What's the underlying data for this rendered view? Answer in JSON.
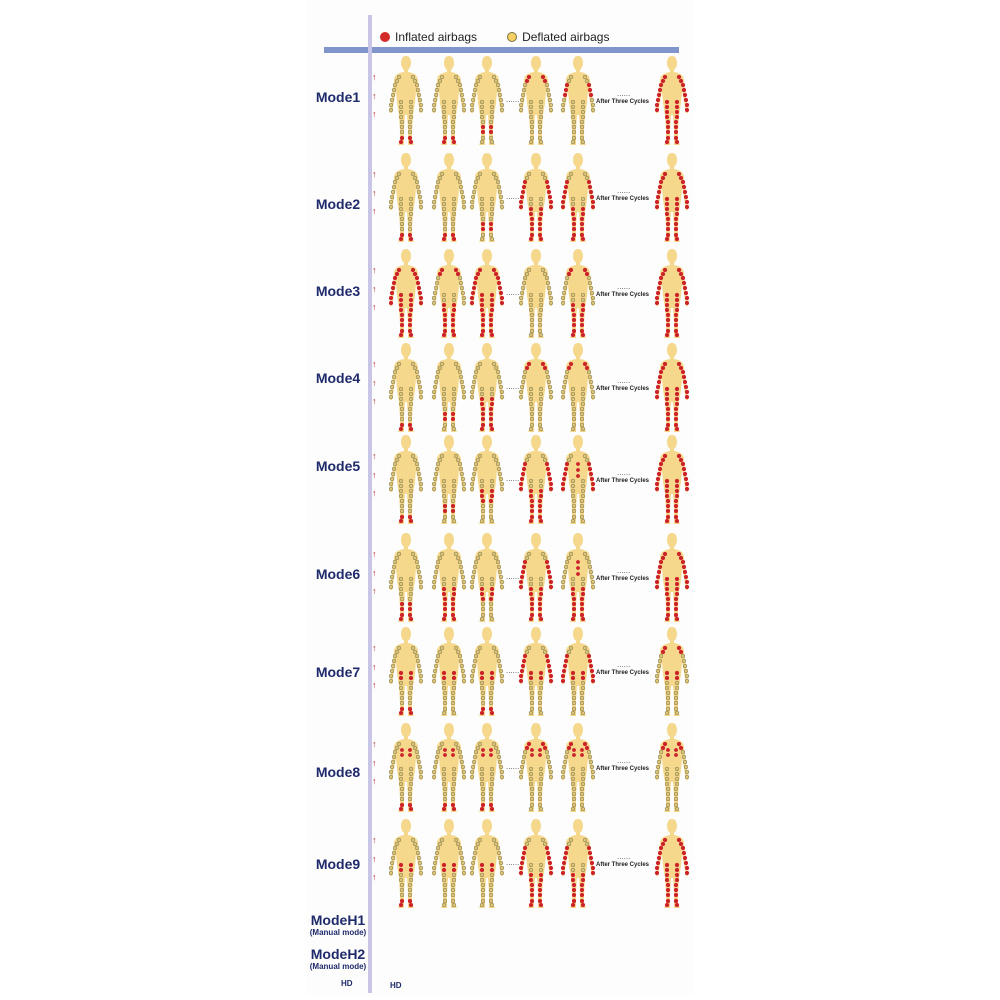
{
  "legend": {
    "inflated_label": "Inflated airbags",
    "deflated_label": "Deflated airbags",
    "inflated_color": "#d42a2a",
    "deflated_color": "#f5d060"
  },
  "colors": {
    "body": "#f6d88d",
    "airbag_inflated": "#cc2229",
    "airbag_deflated": "#dcc67a",
    "airbag_outline": "#7a7040",
    "label": "#1f2a6b"
  },
  "connector_text": "After Three Cycles",
  "ellipsis": "......",
  "hd_left": "HD",
  "hd_right": "HD",
  "manual_modes": [
    {
      "name": "ModeH1",
      "sub": "(Manual mode)"
    },
    {
      "name": "ModeH2",
      "sub": "(Manual mode)"
    }
  ],
  "modes": [
    {
      "name": "Mode1",
      "steps": [
        [
          "feet"
        ],
        [
          "feet"
        ],
        [
          "shins"
        ],
        [
          "shoulders"
        ],
        [
          "upperarms"
        ],
        [
          "all"
        ]
      ]
    },
    {
      "name": "Mode2",
      "steps": [
        [
          "feet"
        ],
        [
          "feet"
        ],
        [
          "shins"
        ],
        [
          "legs",
          "arms"
        ],
        [
          "legs",
          "arms"
        ],
        [
          "all"
        ]
      ]
    },
    {
      "name": "Mode3",
      "steps": [
        [
          "all"
        ],
        [
          "legs",
          "shoulders"
        ],
        [
          "all"
        ],
        [],
        [
          "legs",
          "shoulders"
        ],
        [
          "all"
        ]
      ]
    },
    {
      "name": "Mode4",
      "steps": [
        [
          "feet"
        ],
        [
          "shins"
        ],
        [
          "legs"
        ],
        [
          "shoulders"
        ],
        [
          "shoulders"
        ],
        [
          "all"
        ]
      ]
    },
    {
      "name": "Mode5",
      "steps": [
        [
          "feet"
        ],
        [
          "shins"
        ],
        [
          "thighs"
        ],
        [
          "arms",
          "legs"
        ],
        [
          "arms",
          "torso"
        ],
        [
          "all"
        ]
      ]
    },
    {
      "name": "Mode6",
      "steps": [
        [
          "feet",
          "shins"
        ],
        [
          "legs"
        ],
        [
          "thighs"
        ],
        [
          "arms",
          "legs"
        ],
        [
          "legs",
          "torso"
        ],
        [
          "all"
        ]
      ]
    },
    {
      "name": "Mode7",
      "steps": [
        [
          "hips",
          "feet"
        ],
        [
          "hips"
        ],
        [
          "hips",
          "feet"
        ],
        [
          "hips",
          "arms"
        ],
        [
          "hips",
          "arms"
        ],
        [
          "hips",
          "shoulders"
        ]
      ]
    },
    {
      "name": "Mode8",
      "steps": [
        [
          "chest",
          "feet"
        ],
        [
          "chest",
          "feet"
        ],
        [
          "chest",
          "feet"
        ],
        [
          "chest",
          "shoulders"
        ],
        [
          "chest",
          "shoulders"
        ],
        [
          "shoulders",
          "chest"
        ]
      ]
    },
    {
      "name": "Mode9",
      "steps": [
        [
          "hips",
          "feet"
        ],
        [
          "hips"
        ],
        [
          "hips"
        ],
        [
          "arms",
          "legs"
        ],
        [
          "arms",
          "legs"
        ],
        [
          "all"
        ]
      ]
    }
  ]
}
